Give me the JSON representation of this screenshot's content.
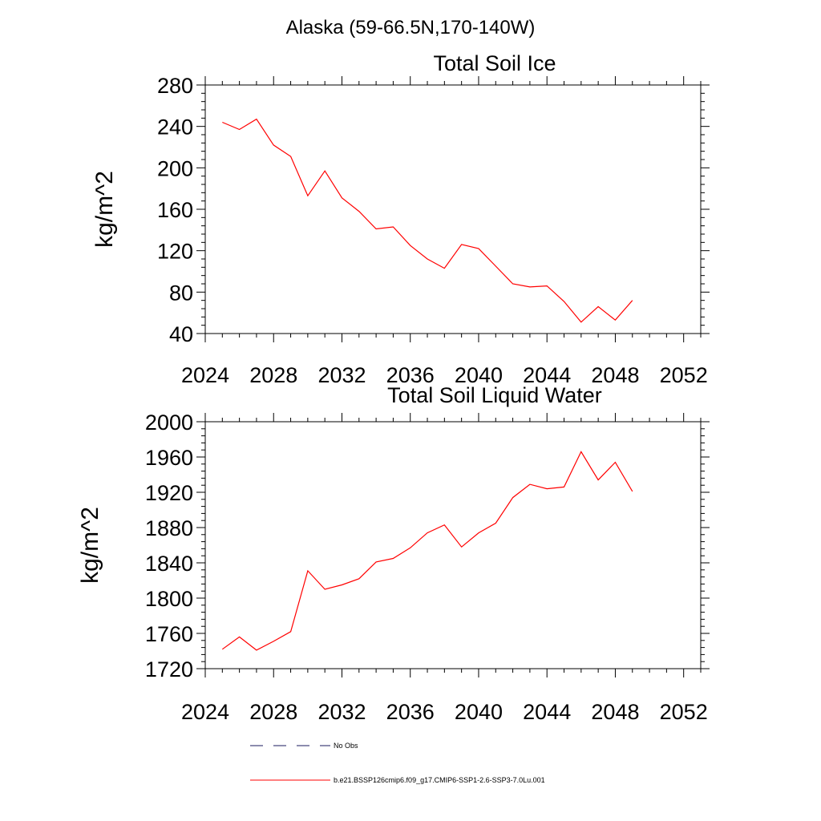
{
  "figure": {
    "title": "Alaska (59-66.5N,170-140W)"
  },
  "chart_data": [
    {
      "type": "line",
      "title": "Total Soil Ice",
      "xlabel": "",
      "ylabel": "kg/m^2",
      "xlim": [
        2024,
        2053
      ],
      "ylim": [
        40,
        280
      ],
      "xticks": [
        2024,
        2028,
        2032,
        2036,
        2040,
        2044,
        2048,
        2052
      ],
      "yticks": [
        40,
        80,
        120,
        160,
        200,
        240,
        280
      ],
      "grid": false,
      "series": [
        {
          "name": "b.e21.BSSP126cmip6.f09_g17.CMIP6-SSP1-2.6-SSP3-7.0Lu.001",
          "color": "#ff0000",
          "x": [
            2025,
            2026,
            2027,
            2028,
            2029,
            2030,
            2031,
            2032,
            2033,
            2034,
            2035,
            2036,
            2037,
            2038,
            2039,
            2040,
            2041,
            2042,
            2043,
            2044,
            2045,
            2046,
            2047,
            2048,
            2049
          ],
          "y": [
            244,
            237,
            247,
            222,
            211,
            173,
            197,
            171,
            158,
            141,
            143,
            125,
            112,
            103,
            126,
            122,
            105,
            88,
            85,
            86,
            71,
            51,
            66,
            53,
            72
          ]
        }
      ]
    },
    {
      "type": "line",
      "title": "Total Soil Liquid Water",
      "xlabel": "",
      "ylabel": "kg/m^2",
      "xlim": [
        2024,
        2053
      ],
      "ylim": [
        1720,
        2000
      ],
      "xticks": [
        2024,
        2028,
        2032,
        2036,
        2040,
        2044,
        2048,
        2052
      ],
      "yticks": [
        1720,
        1760,
        1800,
        1840,
        1880,
        1920,
        1960,
        2000
      ],
      "grid": false,
      "series": [
        {
          "name": "b.e21.BSSP126cmip6.f09_g17.CMIP6-SSP1-2.6-SSP3-7.0Lu.001",
          "color": "#ff0000",
          "x": [
            2025,
            2026,
            2027,
            2028,
            2029,
            2030,
            2031,
            2032,
            2033,
            2034,
            2035,
            2036,
            2037,
            2038,
            2039,
            2040,
            2041,
            2042,
            2043,
            2044,
            2045,
            2046,
            2047,
            2048,
            2049
          ],
          "y": [
            1742,
            1756,
            1741,
            1751,
            1762,
            1831,
            1810,
            1815,
            1822,
            1841,
            1845,
            1857,
            1874,
            1883,
            1858,
            1874,
            1885,
            1914,
            1929,
            1924,
            1926,
            1966,
            1934,
            1954,
            1921
          ]
        }
      ]
    }
  ],
  "legend": {
    "placement": "bottom",
    "items": [
      {
        "label": "No Obs",
        "style": "dashed",
        "color": "#1a1a5e"
      },
      {
        "label": "b.e21.BSSP126cmip6.f09_g17.CMIP6-SSP1-2.6-SSP3-7.0Lu.001",
        "style": "solid",
        "color": "#ff0000"
      }
    ]
  }
}
